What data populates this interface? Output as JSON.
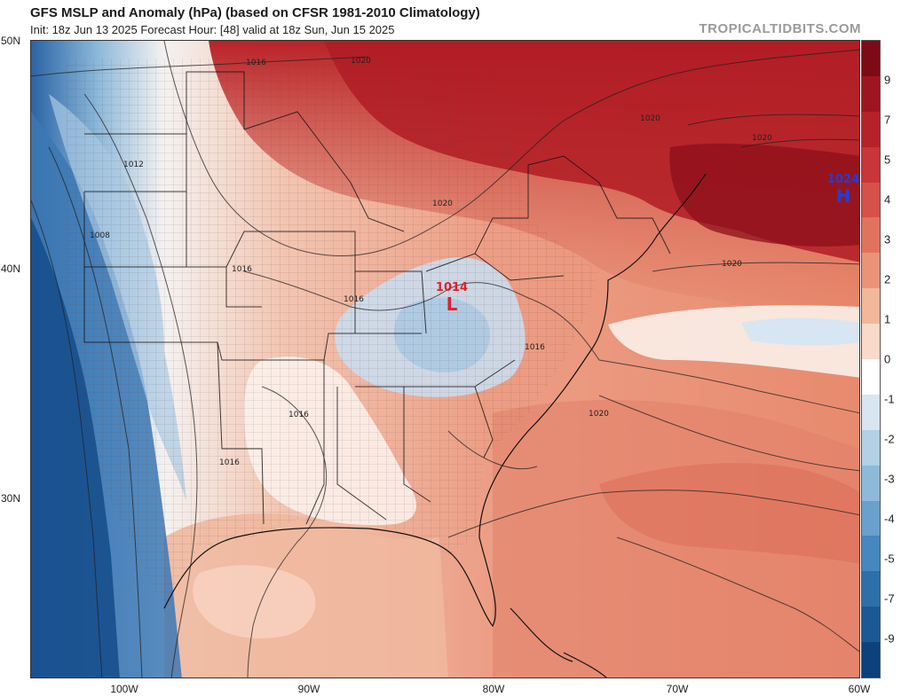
{
  "header": {
    "title": "GFS MSLP and Anomaly (hPa) (based on CFSR 1981-2010 Climatology)",
    "subtitle": "Init: 18z Jun 13 2025   Forecast Hour: [48]   valid at 18z Sun, Jun 15 2025",
    "brand": "TROPICALTIDBITS.COM"
  },
  "axes": {
    "lat_labels": [
      "50N",
      "40N",
      "30N"
    ],
    "lon_labels": [
      "100W",
      "90W",
      "80W",
      "70W",
      "60W"
    ]
  },
  "isobars": {
    "labels": [
      "1016",
      "1020",
      "1012",
      "1008",
      "1016",
      "1016",
      "1020",
      "1020",
      "1020",
      "1020",
      "1016",
      "1020",
      "1016",
      "1016"
    ]
  },
  "pressure_centers": {
    "low": {
      "symbol": "L",
      "value": "1014",
      "color": "#e0202a"
    },
    "high": {
      "symbol": "H",
      "value": "1024",
      "color": "#1f3fd8"
    }
  },
  "colorbar": {
    "labels": [
      "9",
      "7",
      "5",
      "4",
      "3",
      "2",
      "1",
      "0",
      "-1",
      "-2",
      "-3",
      "-4",
      "-5",
      "-7",
      "-9"
    ],
    "colors": [
      "#7d0a17",
      "#9e1521",
      "#b72129",
      "#c8353a",
      "#d65149",
      "#e0735e",
      "#e99478",
      "#f2b79c",
      "#f9d9c8",
      "#ffffff",
      "#d8e6f1",
      "#b3d0e5",
      "#8fb9d8",
      "#6aa0cb",
      "#4887bd",
      "#2e6faa",
      "#1c5895",
      "#0d417b"
    ]
  },
  "colors": {
    "warm_strong": "#a8141f",
    "warm_mid": "#d95e4e",
    "warm_light": "#f1b39a",
    "neutral": "#fbeee8",
    "cool_light": "#d6e6f2",
    "cool_mid": "#7eafd4",
    "cool_strong": "#1f5d9c",
    "ocean": "#e68a6d"
  }
}
